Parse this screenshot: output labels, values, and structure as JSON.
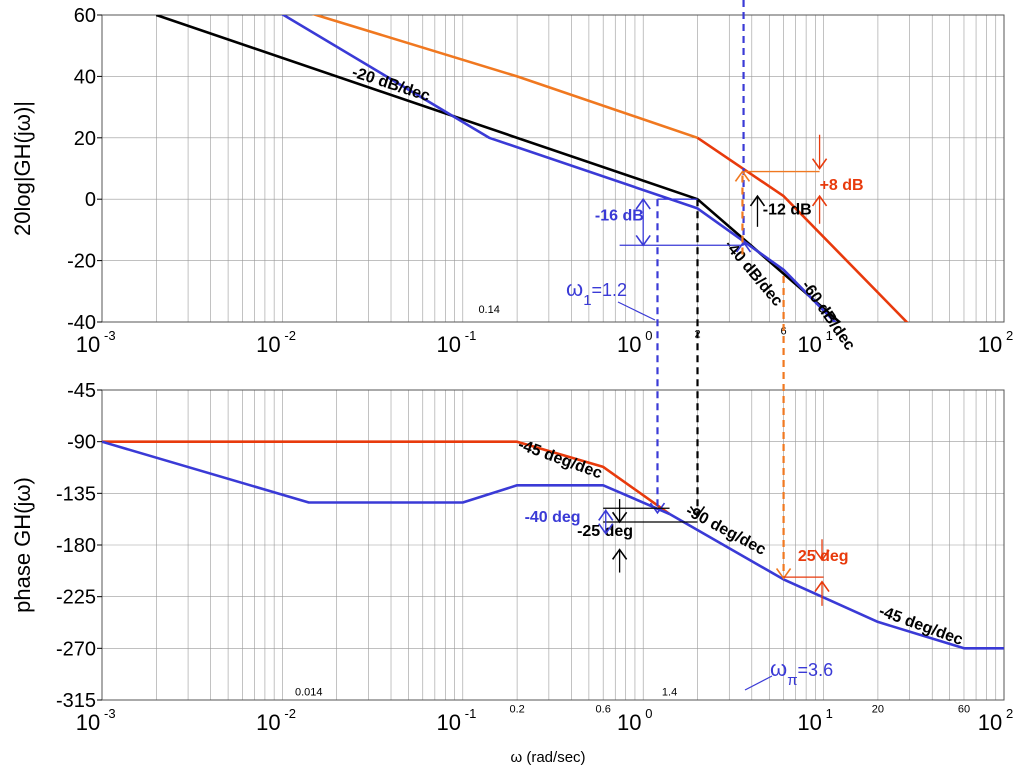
{
  "chart_data": [
    {
      "type": "line",
      "id": "magnitude",
      "ylabel": "20log|GH(jω)|",
      "xscale": "log",
      "xlim": [
        0.001,
        100
      ],
      "ylim": [
        -40,
        60
      ],
      "yticks": [
        60,
        40,
        20,
        0,
        -20,
        -40
      ],
      "xticks": [
        {
          "base": "10",
          "exp": "-3"
        },
        {
          "base": "10",
          "exp": "-2"
        },
        {
          "base": "10",
          "exp": "-1"
        },
        {
          "base": "10",
          "exp": "0"
        },
        {
          "base": "10",
          "exp": "1"
        },
        {
          "base": "10",
          "exp": "2"
        }
      ],
      "grid": true,
      "series": [
        {
          "color": "#000000",
          "x": [
            0.002,
            2,
            14
          ],
          "y": [
            60,
            0,
            -43
          ]
        },
        {
          "color": "#3a3ad6",
          "x": [
            0.006,
            0.14,
            2,
            6,
            12
          ],
          "y": [
            68,
            20,
            -3,
            -23,
            -41
          ]
        },
        {
          "color": "#f07820",
          "x": [
            0.0055,
            0.2,
            2
          ],
          "y": [
            68,
            40,
            20
          ]
        },
        {
          "color": "#e83a0c",
          "x": [
            2,
            6,
            30
          ],
          "y": [
            20,
            1,
            -41
          ]
        }
      ],
      "annotations": [
        {
          "text": "-20 dB/dec",
          "x": 0.024,
          "y": 40,
          "rotate": 18,
          "color": "#000000"
        },
        {
          "text": "-40 dB/dec",
          "x": 2.8,
          "y": -15,
          "rotate": 50,
          "color": "#000000"
        },
        {
          "text": "-60 dB/dec",
          "x": 7.5,
          "y": -28,
          "rotate": 55,
          "color": "#000000"
        },
        {
          "text": "-12 dB",
          "x": 4.6,
          "y": -5,
          "rotate": 0,
          "color": "#000000"
        },
        {
          "text": "+8 dB",
          "x": 9.5,
          "y": 3,
          "rotate": 0,
          "color": "#e83a0c"
        },
        {
          "text": "-16 dB",
          "x": 0.54,
          "y": -7,
          "rotate": 0,
          "color": "#3a3ad6"
        },
        {
          "text": "0.14",
          "x": 0.14,
          "y": -37,
          "rotate": 0,
          "color": "#000000"
        },
        {
          "text": "2",
          "x": 2,
          "y": -45,
          "rotate": 0,
          "color": "#000000"
        },
        {
          "text": "6",
          "x": 6,
          "y": -44,
          "rotate": 0,
          "color": "#000000"
        }
      ],
      "omega_label": {
        "symbol": "ω",
        "sub": "1",
        "value": "=1.2"
      }
    },
    {
      "type": "line",
      "id": "phase",
      "ylabel": "phase GH(jω)",
      "xlabel": "ω (rad/sec)",
      "xscale": "log",
      "xlim": [
        0.001,
        100
      ],
      "ylim": [
        -315,
        -45
      ],
      "yticks": [
        -45,
        -90,
        -135,
        -180,
        -225,
        -270,
        -315
      ],
      "xticks": [
        {
          "base": "10",
          "exp": "-3"
        },
        {
          "base": "10",
          "exp": "-2"
        },
        {
          "base": "10",
          "exp": "-1"
        },
        {
          "base": "10",
          "exp": "0"
        },
        {
          "base": "10",
          "exp": "1"
        },
        {
          "base": "10",
          "exp": "2"
        }
      ],
      "grid": true,
      "series": [
        {
          "color": "#e83a0c",
          "x": [
            0.001,
            0.2,
            0.6,
            1.4
          ],
          "y": [
            -90,
            -90,
            -112,
            -153
          ]
        },
        {
          "color": "#3a3ad6",
          "x": [
            0.001,
            0.014,
            0.1,
            0.2,
            0.6,
            1.4
          ],
          "y": [
            -90,
            -143,
            -143,
            -128,
            -128,
            -153
          ]
        },
        {
          "color": "#3a3ad6",
          "x": [
            1.4,
            6,
            20,
            60,
            100
          ],
          "y": [
            -153,
            -210,
            -247,
            -270,
            -270
          ]
        }
      ],
      "annotations": [
        {
          "text": "-45 deg/dec",
          "x": 0.2,
          "y": -96,
          "rotate": 20,
          "color": "#000000"
        },
        {
          "text": "-90 deg/dec",
          "x": 1.7,
          "y": -153,
          "rotate": 28,
          "color": "#000000"
        },
        {
          "text": "-45 deg/dec",
          "x": 20,
          "y": -241,
          "rotate": 20,
          "color": "#000000"
        },
        {
          "text": "-40 deg",
          "x": 0.22,
          "y": -160,
          "rotate": 0,
          "color": "#3a3ad6"
        },
        {
          "text": "-25 deg",
          "x": 0.43,
          "y": -172,
          "rotate": 0,
          "color": "#000000"
        },
        {
          "text": "25 deg",
          "x": 7.2,
          "y": -194,
          "rotate": 0,
          "color": "#e83a0c"
        },
        {
          "text": "0.014",
          "x": 0.014,
          "y": -311,
          "rotate": 0,
          "color": "#000000"
        },
        {
          "text": "1.4",
          "x": 1.4,
          "y": -311,
          "rotate": 0,
          "color": "#000000"
        },
        {
          "text": "0.2",
          "x": 0.2,
          "y": -326,
          "rotate": 0,
          "color": "#000000"
        },
        {
          "text": "0.6",
          "x": 0.6,
          "y": -326,
          "rotate": 0,
          "color": "#000000"
        },
        {
          "text": "20",
          "x": 20,
          "y": -326,
          "rotate": 0,
          "color": "#000000"
        },
        {
          "text": "60",
          "x": 60,
          "y": -326,
          "rotate": 0,
          "color": "#000000"
        }
      ],
      "omega_label": {
        "symbol": "ω",
        "sub": "π",
        "value": "=3.6"
      }
    }
  ],
  "colors": {
    "black": "#000000",
    "blue": "#3a3ad6",
    "orange": "#f07820",
    "red_orange": "#e83a0c"
  }
}
